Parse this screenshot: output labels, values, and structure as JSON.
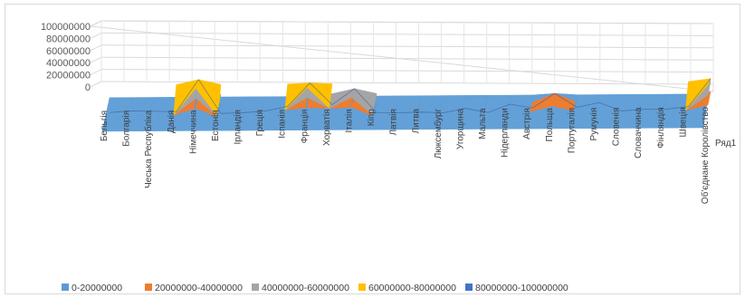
{
  "chart_data": {
    "type": "surface",
    "categories": [
      "Бельгія",
      "Болгарія",
      "Чеська Республіка",
      "Данія",
      "Німеччина",
      "Естонія",
      "Ірландія",
      "Греція",
      "Іспанія",
      "Франція",
      "Хорватія",
      "Італія",
      "Кіпр",
      "Латвія",
      "Литва",
      "Люксембург",
      "Угорщина",
      "Мальта",
      "Нідерланди",
      "Австрія",
      "Польща",
      "Португалія",
      "Румунія",
      "Словенія",
      "Словаччина",
      "Фінляндія",
      "Швеція",
      "Об'єднане Королівство"
    ],
    "series": [
      {
        "name": "Ряд1",
        "values": [
          5000000,
          8000000,
          7000000,
          6000000,
          70000000,
          2000000,
          3000000,
          6000000,
          15000000,
          62000000,
          18000000,
          50000000,
          1500000,
          1000000,
          2000000,
          500000,
          9000000,
          500000,
          17000000,
          9000000,
          38000000,
          10000000,
          19000000,
          2000000,
          5000000,
          5000000,
          10000000,
          66000000
        ]
      }
    ],
    "yticks": [
      "100000000",
      "80000000",
      "60000000",
      "40000000",
      "20000000",
      "0"
    ],
    "ylim": [
      0,
      100000000
    ],
    "legend": {
      "position": "bottom",
      "items": [
        {
          "label": "0-20000000",
          "color": "#5b9bd5"
        },
        {
          "label": "20000000-40000000",
          "color": "#ed7d31"
        },
        {
          "label": "40000000-60000000",
          "color": "#a5a5a5"
        },
        {
          "label": "60000000-80000000",
          "color": "#ffc000"
        },
        {
          "label": "80000000-100000000",
          "color": "#4472c4"
        }
      ]
    }
  }
}
